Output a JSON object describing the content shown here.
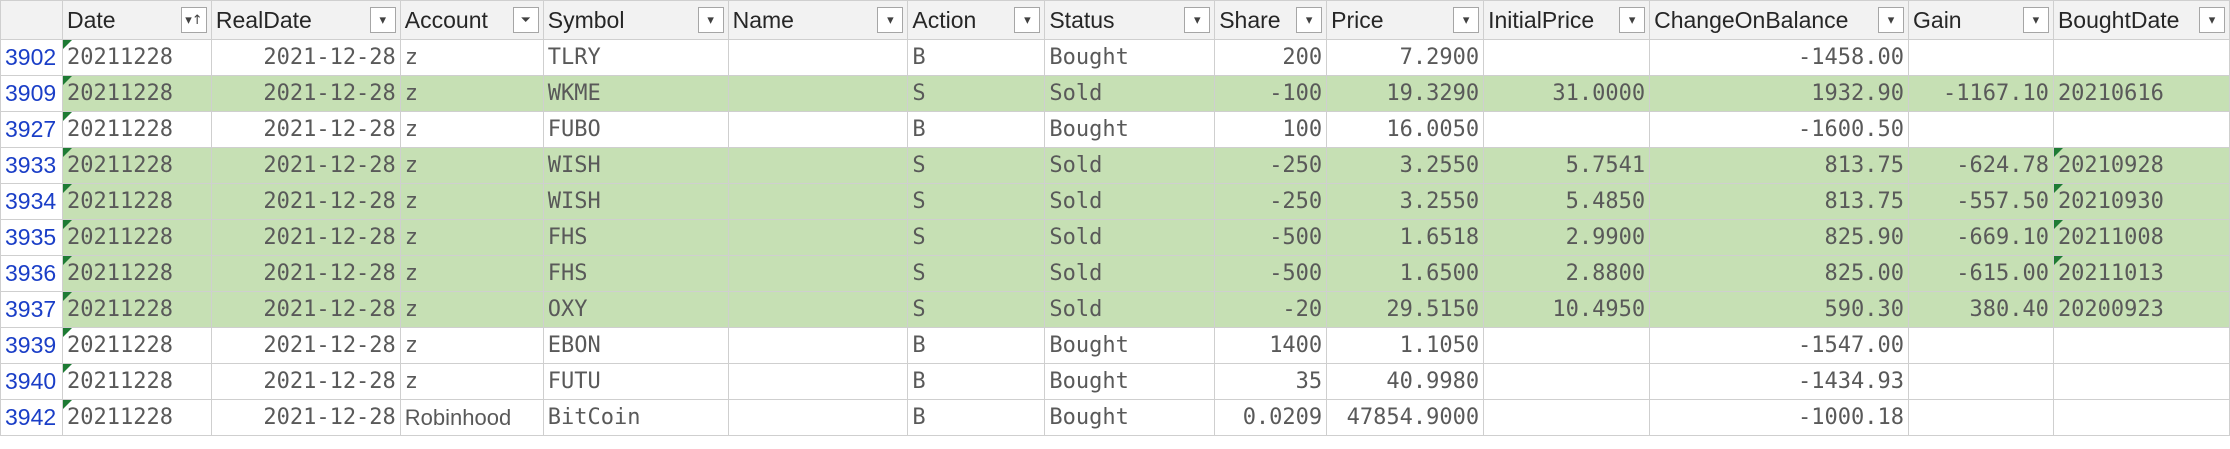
{
  "columns": [
    {
      "label": "Date",
      "filter": "sort-asc"
    },
    {
      "label": "RealDate",
      "filter": "dropdown"
    },
    {
      "label": "Account",
      "filter": "filtered"
    },
    {
      "label": "Symbol",
      "filter": "dropdown"
    },
    {
      "label": "Name",
      "filter": "dropdown"
    },
    {
      "label": "Action",
      "filter": "dropdown"
    },
    {
      "label": "Status",
      "filter": "dropdown"
    },
    {
      "label": "Share",
      "filter": "dropdown"
    },
    {
      "label": "Price",
      "filter": "dropdown"
    },
    {
      "label": "InitialPrice",
      "filter": "dropdown"
    },
    {
      "label": "ChangeOnBalance",
      "filter": "dropdown"
    },
    {
      "label": "Gain",
      "filter": "dropdown"
    },
    {
      "label": "BoughtDate",
      "filter": "dropdown"
    }
  ],
  "icons": {
    "dropdown": "▾",
    "sort_asc": "▾↑",
    "filtered": "⏷"
  },
  "colors": {
    "sold_fill": "#c6e0b4",
    "row_number": "#1a3ec7",
    "comment_marker": "#1e7b34"
  },
  "rows": [
    {
      "row": "3902",
      "sold": false,
      "date": "20211228",
      "realdate": "2021-12-28",
      "account": "z",
      "symbol": "TLRY",
      "name": "",
      "action": "B",
      "status": "Bought",
      "share": "200",
      "price": "7.2900",
      "initialprice": "",
      "change": "-1458.00",
      "gain": "",
      "boughtdate": "",
      "marks": {
        "date": true
      }
    },
    {
      "row": "3909",
      "sold": true,
      "date": "20211228",
      "realdate": "2021-12-28",
      "account": "z",
      "symbol": "WKME",
      "name": "",
      "action": "S",
      "status": "Sold",
      "share": "-100",
      "price": "19.3290",
      "initialprice": "31.0000",
      "change": "1932.90",
      "gain": "-1167.10",
      "boughtdate": "20210616",
      "marks": {
        "date": true
      }
    },
    {
      "row": "3927",
      "sold": false,
      "date": "20211228",
      "realdate": "2021-12-28",
      "account": "z",
      "symbol": "FUBO",
      "name": "",
      "action": "B",
      "status": "Bought",
      "share": "100",
      "price": "16.0050",
      "initialprice": "",
      "change": "-1600.50",
      "gain": "",
      "boughtdate": "",
      "marks": {
        "date": true
      }
    },
    {
      "row": "3933",
      "sold": true,
      "date": "20211228",
      "realdate": "2021-12-28",
      "account": "z",
      "symbol": "WISH",
      "name": "",
      "action": "S",
      "status": "Sold",
      "share": "-250",
      "price": "3.2550",
      "initialprice": "5.7541",
      "change": "813.75",
      "gain": "-624.78",
      "boughtdate": "20210928",
      "marks": {
        "date": true,
        "boughtdate": true
      }
    },
    {
      "row": "3934",
      "sold": true,
      "date": "20211228",
      "realdate": "2021-12-28",
      "account": "z",
      "symbol": "WISH",
      "name": "",
      "action": "S",
      "status": "Sold",
      "share": "-250",
      "price": "3.2550",
      "initialprice": "5.4850",
      "change": "813.75",
      "gain": "-557.50",
      "boughtdate": "20210930",
      "marks": {
        "date": true,
        "boughtdate": true
      }
    },
    {
      "row": "3935",
      "sold": true,
      "date": "20211228",
      "realdate": "2021-12-28",
      "account": "z",
      "symbol": "FHS",
      "name": "",
      "action": "S",
      "status": "Sold",
      "share": "-500",
      "price": "1.6518",
      "initialprice": "2.9900",
      "change": "825.90",
      "gain": "-669.10",
      "boughtdate": "20211008",
      "marks": {
        "date": true,
        "boughtdate": true
      }
    },
    {
      "row": "3936",
      "sold": true,
      "date": "20211228",
      "realdate": "2021-12-28",
      "account": "z",
      "symbol": "FHS",
      "name": "",
      "action": "S",
      "status": "Sold",
      "share": "-500",
      "price": "1.6500",
      "initialprice": "2.8800",
      "change": "825.00",
      "gain": "-615.00",
      "boughtdate": "20211013",
      "marks": {
        "date": true,
        "boughtdate": true
      }
    },
    {
      "row": "3937",
      "sold": true,
      "date": "20211228",
      "realdate": "2021-12-28",
      "account": "z",
      "symbol": "OXY",
      "name": "",
      "action": "S",
      "status": "Sold",
      "share": "-20",
      "price": "29.5150",
      "initialprice": "10.4950",
      "change": "590.30",
      "gain": "380.40",
      "boughtdate": "20200923",
      "marks": {
        "date": true
      }
    },
    {
      "row": "3939",
      "sold": false,
      "date": "20211228",
      "realdate": "2021-12-28",
      "account": "z",
      "symbol": "EBON",
      "name": "",
      "action": "B",
      "status": "Bought",
      "share": "1400",
      "price": "1.1050",
      "initialprice": "",
      "change": "-1547.00",
      "gain": "",
      "boughtdate": "",
      "marks": {
        "date": true
      }
    },
    {
      "row": "3940",
      "sold": false,
      "date": "20211228",
      "realdate": "2021-12-28",
      "account": "z",
      "symbol": "FUTU",
      "name": "",
      "action": "B",
      "status": "Bought",
      "share": "35",
      "price": "40.9980",
      "initialprice": "",
      "change": "-1434.93",
      "gain": "",
      "boughtdate": "",
      "marks": {
        "date": true
      }
    },
    {
      "row": "3942",
      "sold": false,
      "date": "20211228",
      "realdate": "2021-12-28",
      "account": "Robinhood",
      "symbol": "BitCoin",
      "name": "",
      "action": "B",
      "status": "Bought",
      "share": "0.0209",
      "price": "47854.9000",
      "initialprice": "",
      "change": "-1000.18",
      "gain": "",
      "boughtdate": "",
      "marks": {
        "date": true
      }
    }
  ]
}
